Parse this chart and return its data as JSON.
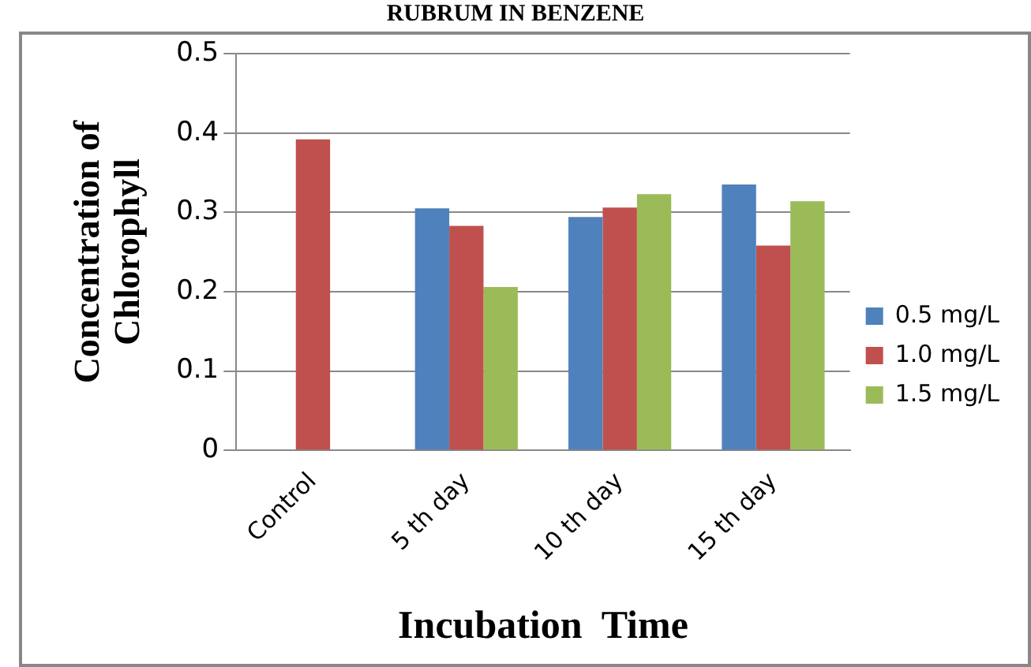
{
  "chart_data": {
    "type": "bar",
    "title": "RUBRUM IN BENZENE",
    "xlabel": "Incubation  Time",
    "ylabel": "Concentration of Chlorophyll",
    "categories": [
      "Control",
      "5 th day",
      "10 th day",
      "15 th day"
    ],
    "series": [
      {
        "name": "0.5 mg/L",
        "color": "#4f81bd",
        "values": [
          null,
          0.305,
          0.294,
          0.335
        ]
      },
      {
        "name": "1.0 mg/L",
        "color": "#c0504d",
        "values": [
          0.392,
          0.283,
          0.306,
          0.258
        ]
      },
      {
        "name": "1.5 mg/L",
        "color": "#9bbb59",
        "values": [
          null,
          0.206,
          0.323,
          0.314
        ]
      }
    ],
    "ylim": [
      0,
      0.5
    ],
    "yticks": [
      0,
      0.1,
      0.2,
      0.3,
      0.4,
      0.5
    ],
    "grid": "y",
    "legend": "right"
  }
}
